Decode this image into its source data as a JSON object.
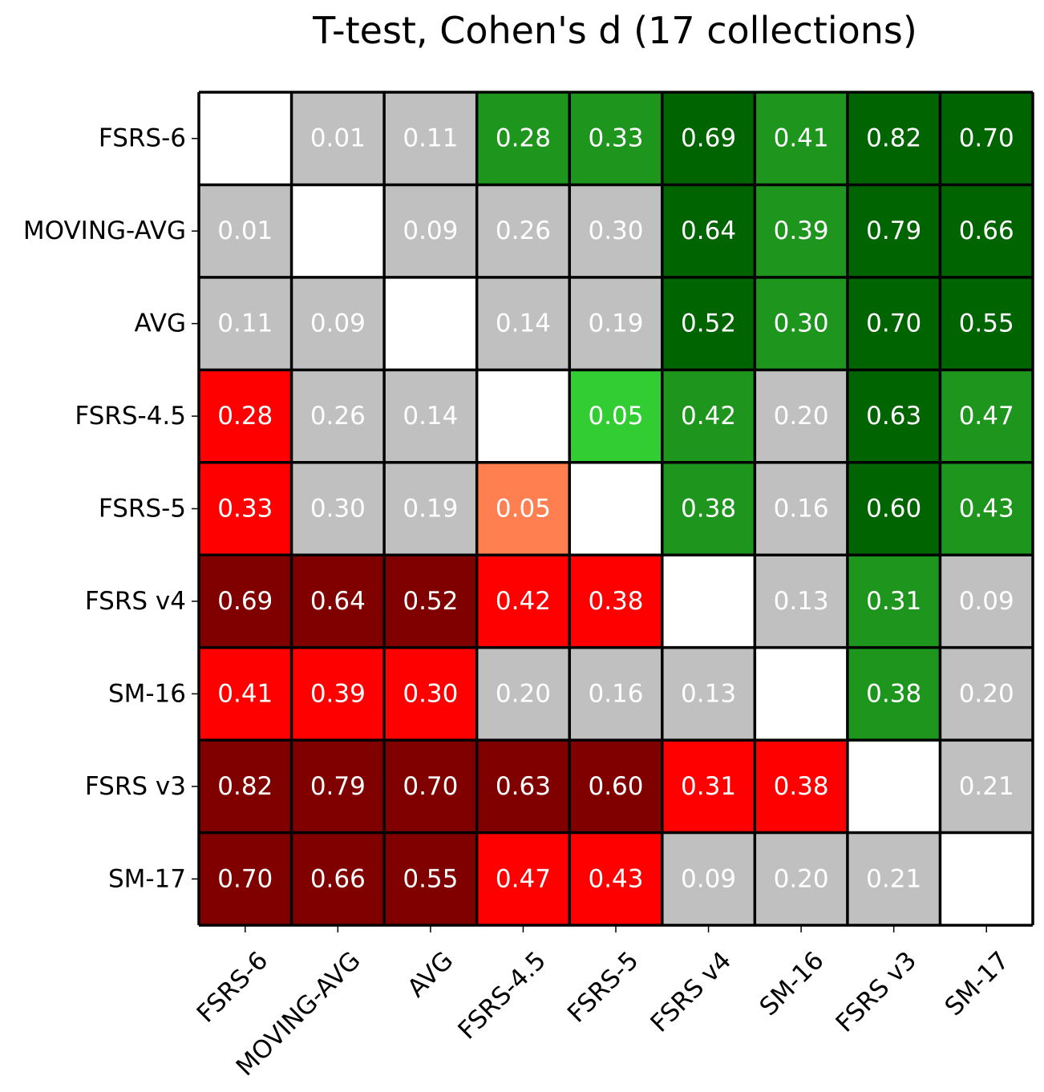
{
  "chart_data": {
    "type": "heatmap",
    "title": "T-test, Cohen's d (17 collections)",
    "xlabel": "",
    "ylabel": "",
    "row_labels": [
      "FSRS-6",
      "MOVING-AVG",
      "AVG",
      "FSRS-4.5",
      "FSRS-5",
      "FSRS v4",
      "SM-16",
      "FSRS v3",
      "SM-17"
    ],
    "col_labels": [
      "FSRS-6",
      "MOVING-AVG",
      "AVG",
      "FSRS-4.5",
      "FSRS-5",
      "FSRS v4",
      "SM-16",
      "FSRS v3",
      "SM-17"
    ],
    "values": [
      [
        null,
        "0.01",
        "0.11",
        "0.28",
        "0.33",
        "0.69",
        "0.41",
        "0.82",
        "0.70"
      ],
      [
        "0.01",
        null,
        "0.09",
        "0.26",
        "0.30",
        "0.64",
        "0.39",
        "0.79",
        "0.66"
      ],
      [
        "0.11",
        "0.09",
        null,
        "0.14",
        "0.19",
        "0.52",
        "0.30",
        "0.70",
        "0.55"
      ],
      [
        "0.28",
        "0.26",
        "0.14",
        null,
        "0.05",
        "0.42",
        "0.20",
        "0.63",
        "0.47"
      ],
      [
        "0.33",
        "0.30",
        "0.19",
        "0.05",
        null,
        "0.38",
        "0.16",
        "0.60",
        "0.43"
      ],
      [
        "0.69",
        "0.64",
        "0.52",
        "0.42",
        "0.38",
        null,
        "0.13",
        "0.31",
        "0.09"
      ],
      [
        "0.41",
        "0.39",
        "0.30",
        "0.20",
        "0.16",
        "0.13",
        null,
        "0.38",
        "0.20"
      ],
      [
        "0.82",
        "0.79",
        "0.70",
        "0.63",
        "0.60",
        "0.31",
        "0.38",
        null,
        "0.21"
      ],
      [
        "0.70",
        "0.66",
        "0.55",
        "0.47",
        "0.43",
        "0.09",
        "0.20",
        "0.21",
        null
      ]
    ],
    "cell_categories": [
      [
        "empty",
        "none",
        "none",
        "medium-better",
        "medium-better",
        "large-better",
        "medium-better",
        "large-better",
        "large-better"
      ],
      [
        "none",
        "empty",
        "none",
        "none",
        "none",
        "large-better",
        "medium-better",
        "large-better",
        "large-better"
      ],
      [
        "none",
        "none",
        "empty",
        "none",
        "none",
        "large-better",
        "medium-better",
        "large-better",
        "large-better"
      ],
      [
        "medium-worse",
        "none",
        "none",
        "empty",
        "small-better",
        "medium-better",
        "none",
        "large-better",
        "medium-better"
      ],
      [
        "medium-worse",
        "none",
        "none",
        "small-worse",
        "empty",
        "medium-better",
        "none",
        "large-better",
        "medium-better"
      ],
      [
        "large-worse",
        "large-worse",
        "large-worse",
        "medium-worse",
        "medium-worse",
        "empty",
        "none",
        "medium-better",
        "none"
      ],
      [
        "medium-worse",
        "medium-worse",
        "medium-worse",
        "none",
        "none",
        "none",
        "empty",
        "medium-better",
        "none"
      ],
      [
        "large-worse",
        "large-worse",
        "large-worse",
        "large-worse",
        "large-worse",
        "medium-worse",
        "medium-worse",
        "empty",
        "none"
      ],
      [
        "large-worse",
        "large-worse",
        "large-worse",
        "medium-worse",
        "medium-worse",
        "none",
        "none",
        "none",
        "empty"
      ]
    ],
    "colors": {
      "empty": "#ffffff",
      "none": "#c0c0c0",
      "small-better": "#32cd32",
      "medium-better": "#1e961e",
      "large-better": "#006400",
      "small-worse": "#ff7f50",
      "medium-worse": "#ff0000",
      "large-worse": "#800000",
      "grid": "#000000",
      "cell_text": "#ffffff"
    }
  }
}
